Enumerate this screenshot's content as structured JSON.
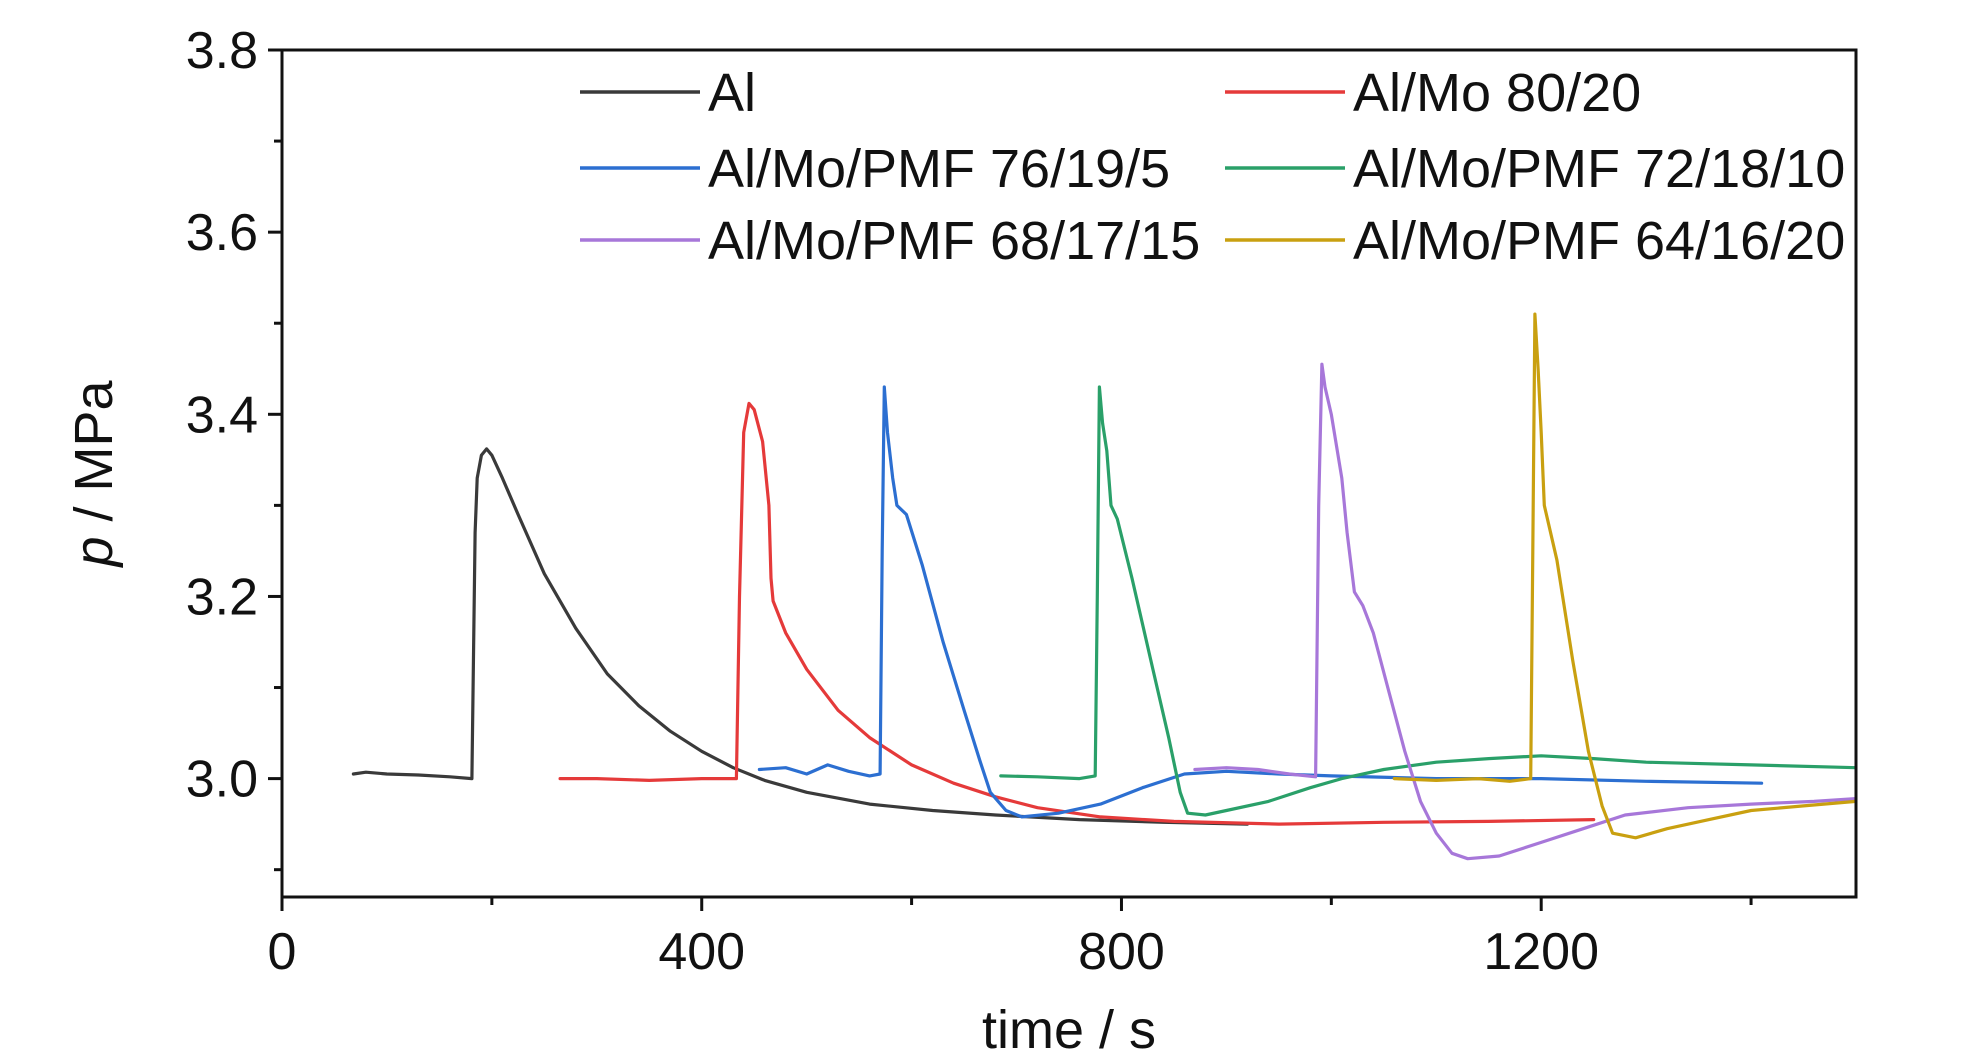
{
  "chart_data": {
    "type": "line",
    "xlabel": "time / s",
    "ylabel_italic": "p",
    "ylabel_rest": " / MPa",
    "xlim": [
      0,
      1500
    ],
    "ylim": [
      2.87,
      3.8
    ],
    "xticks": [
      0,
      400,
      800,
      1200
    ],
    "xtick_labels": [
      "0",
      "400",
      "800",
      "1200"
    ],
    "yticks": [
      3.0,
      3.2,
      3.4,
      3.6,
      3.8
    ],
    "ytick_labels": [
      "3.0",
      "3.2",
      "3.4",
      "3.6",
      "3.8"
    ],
    "grid": false,
    "legend_position": "top",
    "series": [
      {
        "name": "Al",
        "color": "#3a3a3a",
        "points": [
          [
            68,
            3.005
          ],
          [
            80,
            3.007
          ],
          [
            100,
            3.005
          ],
          [
            130,
            3.004
          ],
          [
            160,
            3.002
          ],
          [
            181,
            3.0
          ],
          [
            184,
            3.27
          ],
          [
            186,
            3.33
          ],
          [
            190,
            3.355
          ],
          [
            195,
            3.362
          ],
          [
            200,
            3.355
          ],
          [
            210,
            3.33
          ],
          [
            225,
            3.29
          ],
          [
            250,
            3.225
          ],
          [
            280,
            3.165
          ],
          [
            310,
            3.115
          ],
          [
            340,
            3.08
          ],
          [
            370,
            3.052
          ],
          [
            400,
            3.03
          ],
          [
            430,
            3.012
          ],
          [
            460,
            2.998
          ],
          [
            500,
            2.985
          ],
          [
            560,
            2.972
          ],
          [
            620,
            2.965
          ],
          [
            680,
            2.96
          ],
          [
            760,
            2.955
          ],
          [
            840,
            2.952
          ],
          [
            920,
            2.95
          ]
        ]
      },
      {
        "name": "Al/Mo 80/20",
        "color": "#e53a3a",
        "points": [
          [
            265,
            3.0
          ],
          [
            300,
            3.0
          ],
          [
            350,
            2.998
          ],
          [
            400,
            3.0
          ],
          [
            433,
            3.0
          ],
          [
            436,
            3.2
          ],
          [
            440,
            3.38
          ],
          [
            445,
            3.412
          ],
          [
            450,
            3.405
          ],
          [
            458,
            3.37
          ],
          [
            464,
            3.3
          ],
          [
            466,
            3.22
          ],
          [
            468,
            3.195
          ],
          [
            480,
            3.16
          ],
          [
            500,
            3.12
          ],
          [
            530,
            3.075
          ],
          [
            560,
            3.045
          ],
          [
            600,
            3.015
          ],
          [
            640,
            2.995
          ],
          [
            680,
            2.98
          ],
          [
            720,
            2.968
          ],
          [
            780,
            2.958
          ],
          [
            850,
            2.953
          ],
          [
            950,
            2.95
          ],
          [
            1050,
            2.952
          ],
          [
            1150,
            2.953
          ],
          [
            1250,
            2.955
          ]
        ]
      },
      {
        "name": "Al/Mo/PMF 76/19/5",
        "color": "#2c6fd1",
        "points": [
          [
            455,
            3.01
          ],
          [
            480,
            3.012
          ],
          [
            500,
            3.005
          ],
          [
            520,
            3.015
          ],
          [
            540,
            3.008
          ],
          [
            560,
            3.003
          ],
          [
            570,
            3.005
          ],
          [
            572,
            3.25
          ],
          [
            574,
            3.43
          ],
          [
            577,
            3.38
          ],
          [
            582,
            3.33
          ],
          [
            586,
            3.3
          ],
          [
            595,
            3.29
          ],
          [
            610,
            3.235
          ],
          [
            630,
            3.15
          ],
          [
            650,
            3.075
          ],
          [
            665,
            3.02
          ],
          [
            675,
            2.985
          ],
          [
            690,
            2.965
          ],
          [
            705,
            2.958
          ],
          [
            740,
            2.962
          ],
          [
            780,
            2.972
          ],
          [
            820,
            2.99
          ],
          [
            860,
            3.005
          ],
          [
            900,
            3.008
          ],
          [
            950,
            3.005
          ],
          [
            1000,
            3.003
          ],
          [
            1100,
            3.0
          ],
          [
            1200,
            3.0
          ],
          [
            1300,
            2.997
          ],
          [
            1410,
            2.995
          ]
        ]
      },
      {
        "name": "Al/Mo/PMF 72/18/10",
        "color": "#2aa069",
        "points": [
          [
            685,
            3.003
          ],
          [
            720,
            3.002
          ],
          [
            760,
            3.0
          ],
          [
            775,
            3.003
          ],
          [
            777,
            3.2
          ],
          [
            779,
            3.43
          ],
          [
            782,
            3.39
          ],
          [
            786,
            3.36
          ],
          [
            790,
            3.3
          ],
          [
            796,
            3.285
          ],
          [
            810,
            3.22
          ],
          [
            830,
            3.12
          ],
          [
            845,
            3.045
          ],
          [
            856,
            2.985
          ],
          [
            863,
            2.962
          ],
          [
            880,
            2.96
          ],
          [
            900,
            2.965
          ],
          [
            940,
            2.975
          ],
          [
            980,
            2.99
          ],
          [
            1010,
            3.0
          ],
          [
            1050,
            3.01
          ],
          [
            1100,
            3.018
          ],
          [
            1150,
            3.022
          ],
          [
            1200,
            3.025
          ],
          [
            1250,
            3.022
          ],
          [
            1300,
            3.018
          ],
          [
            1400,
            3.015
          ],
          [
            1500,
            3.012
          ]
        ]
      },
      {
        "name": "Al/Mo/PMF 68/17/15",
        "color": "#a777d9",
        "points": [
          [
            870,
            3.01
          ],
          [
            900,
            3.012
          ],
          [
            930,
            3.01
          ],
          [
            960,
            3.005
          ],
          [
            985,
            3.002
          ],
          [
            988,
            3.3
          ],
          [
            991,
            3.455
          ],
          [
            994,
            3.43
          ],
          [
            1000,
            3.4
          ],
          [
            1010,
            3.33
          ],
          [
            1015,
            3.27
          ],
          [
            1022,
            3.205
          ],
          [
            1030,
            3.19
          ],
          [
            1040,
            3.16
          ],
          [
            1055,
            3.095
          ],
          [
            1070,
            3.03
          ],
          [
            1085,
            2.975
          ],
          [
            1100,
            2.94
          ],
          [
            1115,
            2.918
          ],
          [
            1130,
            2.912
          ],
          [
            1160,
            2.915
          ],
          [
            1200,
            2.93
          ],
          [
            1240,
            2.945
          ],
          [
            1280,
            2.96
          ],
          [
            1340,
            2.968
          ],
          [
            1400,
            2.972
          ],
          [
            1460,
            2.975
          ],
          [
            1500,
            2.978
          ]
        ]
      },
      {
        "name": "Al/Mo/PMF 64/16/20",
        "color": "#c9a010",
        "points": [
          [
            1060,
            3.0
          ],
          [
            1100,
            2.998
          ],
          [
            1140,
            3.0
          ],
          [
            1170,
            2.997
          ],
          [
            1190,
            3.0
          ],
          [
            1192,
            3.25
          ],
          [
            1194,
            3.51
          ],
          [
            1197,
            3.45
          ],
          [
            1200,
            3.38
          ],
          [
            1203,
            3.3
          ],
          [
            1215,
            3.24
          ],
          [
            1230,
            3.13
          ],
          [
            1245,
            3.03
          ],
          [
            1258,
            2.97
          ],
          [
            1268,
            2.94
          ],
          [
            1290,
            2.935
          ],
          [
            1320,
            2.945
          ],
          [
            1360,
            2.955
          ],
          [
            1400,
            2.965
          ],
          [
            1450,
            2.97
          ],
          [
            1500,
            2.975
          ]
        ]
      }
    ]
  }
}
